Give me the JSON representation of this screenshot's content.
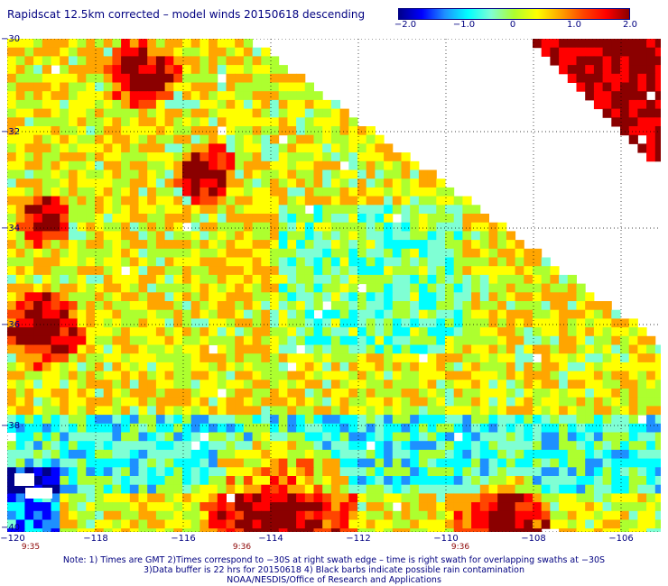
{
  "title": "Rapidscat 12.5km corrected – model winds 20150618 descending",
  "colorbar": {
    "labels": [
      "−2.0",
      "−1.0",
      "0",
      "1.0",
      "2.0"
    ],
    "min": -2.0,
    "max": 2.0,
    "colors": [
      "#00008b",
      "#0000ff",
      "#1e90ff",
      "#00ffff",
      "#7fffd4",
      "#adff2f",
      "#ffff00",
      "#ffa500",
      "#ff4500",
      "#ff0000",
      "#8b0000"
    ]
  },
  "map": {
    "lat_labels": [
      "−30",
      "−32",
      "−34",
      "−36",
      "−38",
      "−40"
    ],
    "lon_labels": [
      "−120",
      "−118",
      "−116",
      "−114",
      "−112",
      "−110",
      "−108",
      "−106"
    ],
    "lon_range": [
      -120,
      -105.3
    ],
    "lat_range": [
      -30,
      -40
    ],
    "time_labels": [
      "9:35",
      "9:36",
      "9:36"
    ]
  },
  "notes": {
    "line1": "Note: 1) Times are GMT 2)Times correspond to −30S at right swath edge – time is right swath for overlapping swaths at −30S",
    "line2": "3)Data buffer is 22 hrs for 20150618 4) Black barbs indicate possible rain contamination",
    "line3": "NOAA/NESDIS/Office of Research and Applications"
  }
}
